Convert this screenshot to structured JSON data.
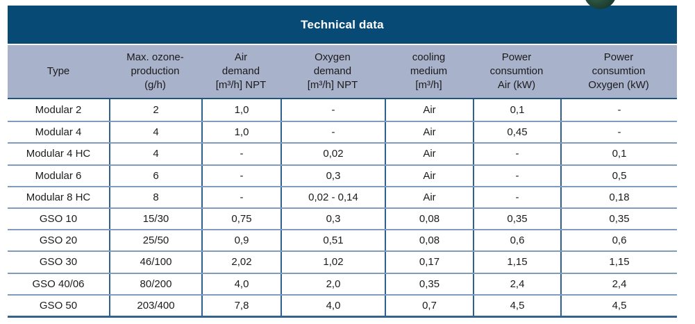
{
  "title": "Technical data",
  "decor": {
    "sphere_icon": "green-sphere-photo-fragment",
    "sphere_color": "#2c5240"
  },
  "colors": {
    "header_bar": "#074a75",
    "column_header_bg": "#a9b2cb",
    "row_separator": "#7f9bbe",
    "column_separator": "#2d6090",
    "title_text": "#ffffff",
    "body_text": "#1b1b1b"
  },
  "table": {
    "columns": [
      {
        "label": "Type"
      },
      {
        "label": "Max. ozone-\nproduction\n(g/h)"
      },
      {
        "label": "Air\ndemand\n[m³/h] NPT"
      },
      {
        "label": "Oxygen\ndemand\n[m³/h] NPT"
      },
      {
        "label": "cooling\nmedium\n[m³/h]"
      },
      {
        "label": "Power\nconsumtion\nAir (kW)"
      },
      {
        "label": "Power\nconsumtion\nOxygen (kW)"
      }
    ],
    "rows": [
      {
        "cells": [
          "Modular 2",
          "2",
          "1,0",
          "-",
          "Air",
          "0,1",
          "-"
        ]
      },
      {
        "cells": [
          "Modular 4",
          "4",
          "1,0",
          "-",
          "Air",
          "0,45",
          "-"
        ]
      },
      {
        "cells": [
          "Modular 4 HC",
          "4",
          "-",
          "0,02",
          "Air",
          "-",
          "0,1"
        ]
      },
      {
        "cells": [
          "Modular 6",
          "6",
          "-",
          "0,3",
          "Air",
          "-",
          "0,5"
        ]
      },
      {
        "cells": [
          "Modular 8 HC",
          "8",
          "-",
          "0,02 - 0,14",
          "Air",
          "-",
          "0,18"
        ]
      },
      {
        "cells": [
          "GSO 10",
          "15/30",
          "0,75",
          "0,3",
          "0,08",
          "0,35",
          "0,35"
        ]
      },
      {
        "cells": [
          "GSO 20",
          "25/50",
          "0,9",
          "0,51",
          "0,08",
          "0,6",
          "0,6"
        ]
      },
      {
        "cells": [
          "GSO 30",
          "46/100",
          "2,02",
          "1,02",
          "0,17",
          "1,15",
          "1,15"
        ]
      },
      {
        "cells": [
          "GSO 40/06",
          "80/200",
          "4,0",
          "2,0",
          "0,35",
          "2,4",
          "2,4"
        ]
      },
      {
        "cells": [
          "GSO 50",
          "203/400",
          "7,8",
          "4,0",
          "0,7",
          "4,5",
          "4,5"
        ]
      }
    ]
  }
}
